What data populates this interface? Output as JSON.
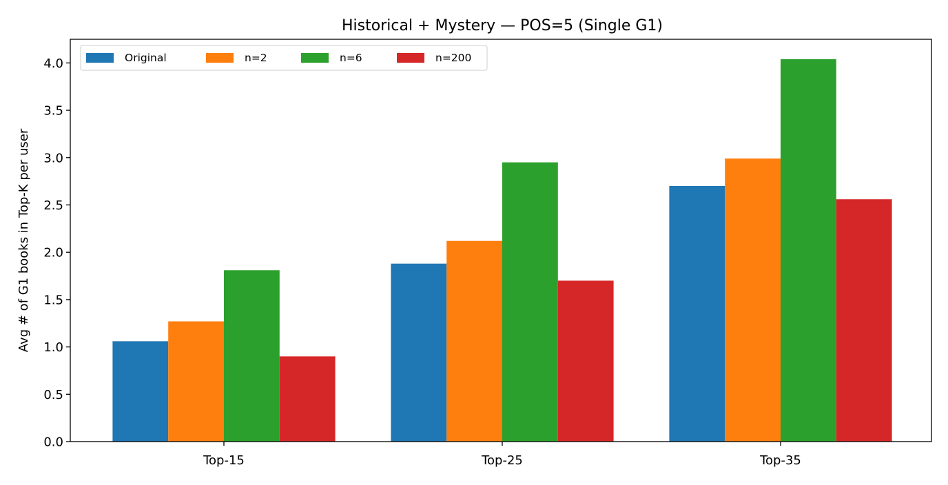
{
  "chart_data": {
    "type": "bar",
    "title": "Historical + Mystery — POS=5 (Single G1)",
    "xlabel": "",
    "ylabel": "Avg # of G1 books in Top-K per user",
    "categories": [
      "Top-15",
      "Top-25",
      "Top-35"
    ],
    "series": [
      {
        "name": "Original",
        "color": "#1f77b4",
        "values": [
          1.06,
          1.88,
          2.7
        ]
      },
      {
        "name": "n=2",
        "color": "#ff7f0e",
        "values": [
          1.27,
          2.12,
          2.99
        ]
      },
      {
        "name": "n=6",
        "color": "#2ca02c",
        "values": [
          1.81,
          2.95,
          4.04
        ]
      },
      {
        "name": "n=200",
        "color": "#d62728",
        "values": [
          0.9,
          1.7,
          2.56
        ]
      }
    ],
    "ylim": [
      0,
      4.25
    ],
    "yticks": [
      "0.0",
      "0.5",
      "1.0",
      "1.5",
      "2.0",
      "2.5",
      "3.0",
      "3.5",
      "4.0"
    ],
    "grid": false,
    "legend_position": "top-left"
  }
}
